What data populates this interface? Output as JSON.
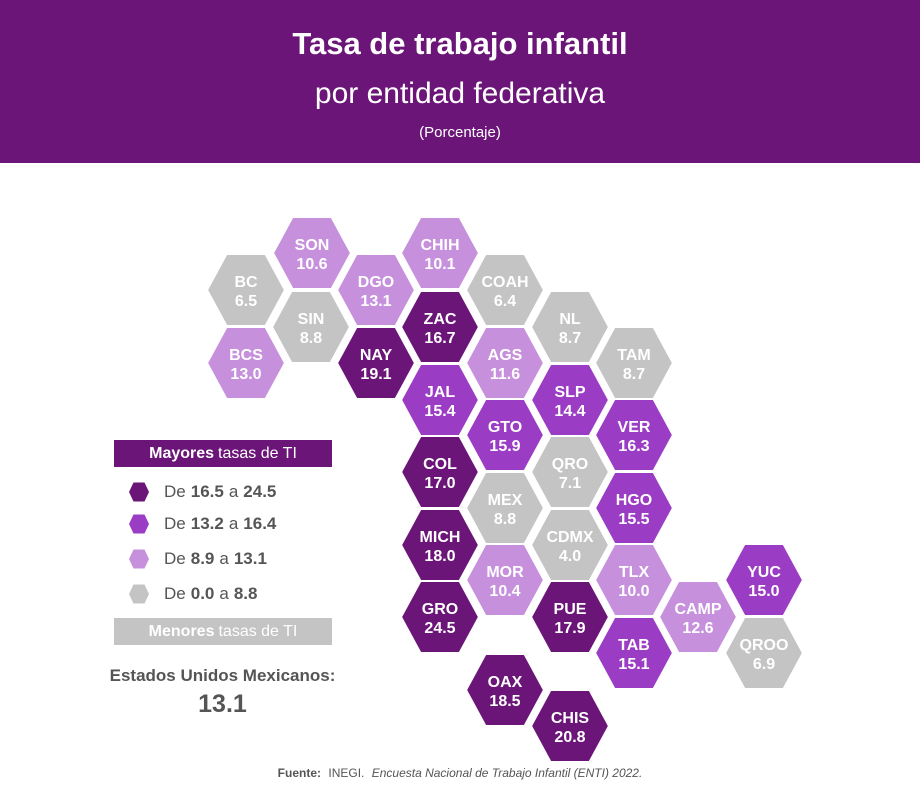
{
  "header": {
    "title": "Tasa de trabajo infantil",
    "subtitle": "por entidad federativa",
    "unit": "(Porcentaje)"
  },
  "colors": {
    "header_bg": "#6a1577",
    "level_1": "#6a1577",
    "level_2": "#9b3cc5",
    "level_3": "#c690dc",
    "level_4": "#c4c4c4"
  },
  "states": [
    {
      "code": "SON",
      "value": "10.6",
      "level": 3
    },
    {
      "code": "CHIH",
      "value": "10.1",
      "level": 3
    },
    {
      "code": "BC",
      "value": "6.5",
      "level": 4
    },
    {
      "code": "DGO",
      "value": "13.1",
      "level": 3
    },
    {
      "code": "COAH",
      "value": "6.4",
      "level": 4
    },
    {
      "code": "SIN",
      "value": "8.8",
      "level": 4
    },
    {
      "code": "ZAC",
      "value": "16.7",
      "level": 1
    },
    {
      "code": "NL",
      "value": "8.7",
      "level": 4
    },
    {
      "code": "BCS",
      "value": "13.0",
      "level": 3
    },
    {
      "code": "NAY",
      "value": "19.1",
      "level": 1
    },
    {
      "code": "AGS",
      "value": "11.6",
      "level": 3
    },
    {
      "code": "TAM",
      "value": "8.7",
      "level": 4
    },
    {
      "code": "JAL",
      "value": "15.4",
      "level": 2
    },
    {
      "code": "SLP",
      "value": "14.4",
      "level": 2
    },
    {
      "code": "GTO",
      "value": "15.9",
      "level": 2
    },
    {
      "code": "VER",
      "value": "16.3",
      "level": 2
    },
    {
      "code": "COL",
      "value": "17.0",
      "level": 1
    },
    {
      "code": "QRO",
      "value": "7.1",
      "level": 4
    },
    {
      "code": "MEX",
      "value": "8.8",
      "level": 4
    },
    {
      "code": "HGO",
      "value": "15.5",
      "level": 2
    },
    {
      "code": "MICH",
      "value": "18.0",
      "level": 1
    },
    {
      "code": "CDMX",
      "value": "4.0",
      "level": 4
    },
    {
      "code": "MOR",
      "value": "10.4",
      "level": 3
    },
    {
      "code": "TLX",
      "value": "10.0",
      "level": 3
    },
    {
      "code": "YUC",
      "value": "15.0",
      "level": 2
    },
    {
      "code": "GRO",
      "value": "24.5",
      "level": 1
    },
    {
      "code": "PUE",
      "value": "17.9",
      "level": 1
    },
    {
      "code": "CAMP",
      "value": "12.6",
      "level": 3
    },
    {
      "code": "TAB",
      "value": "15.1",
      "level": 2
    },
    {
      "code": "QROO",
      "value": "6.9",
      "level": 4
    },
    {
      "code": "OAX",
      "value": "18.5",
      "level": 1
    },
    {
      "code": "CHIS",
      "value": "20.8",
      "level": 1
    }
  ],
  "legend": {
    "top_label_bold": "Mayores",
    "top_label_rest": "tasas de TI",
    "bottom_label_bold": "Menores",
    "bottom_label_rest": "tasas de TI",
    "items": [
      {
        "prefix": "De",
        "from": "16.5",
        "sep": "a",
        "to": "24.5",
        "level": 1
      },
      {
        "prefix": "De",
        "from": "13.2",
        "sep": "a",
        "to": "16.4",
        "level": 2
      },
      {
        "prefix": "De",
        "from": "8.9",
        "sep": "a",
        "to": "13.1",
        "level": 3
      },
      {
        "prefix": "De",
        "from": "0.0",
        "sep": "a",
        "to": "8.8",
        "level": 4
      }
    ]
  },
  "national": {
    "label": "Estados Unidos Mexicanos:",
    "value": "13.1"
  },
  "source": {
    "label": "Fuente:",
    "org": "INEGI.",
    "survey": "Encuesta Nacional de Trabajo Infantil (ENTI) 2022."
  }
}
